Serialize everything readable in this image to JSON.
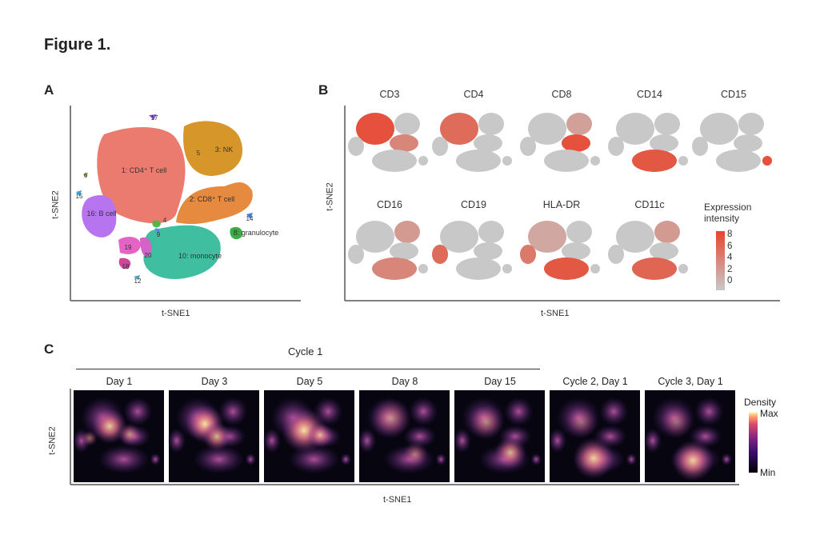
{
  "figure_title": "Figure 1.",
  "panel_a": {
    "label": "A",
    "xlabel": "t-SNE1",
    "ylabel": "t-SNE2",
    "clusters": [
      {
        "id": "1",
        "text": "1: CD4⁺ T cell",
        "color": "#ec7b6f"
      },
      {
        "id": "2",
        "text": "2: CD8⁺ T cell",
        "color": "#e58a3f"
      },
      {
        "id": "3",
        "text": "3: NK",
        "color": "#d7962a"
      },
      {
        "id": "5",
        "text": "5",
        "color": "#d7962a"
      },
      {
        "id": "16",
        "text": "16: B cell",
        "color": "#b774ef"
      },
      {
        "id": "10",
        "text": "10: monocyte",
        "color": "#3fbea0"
      },
      {
        "id": "8",
        "text": "8: granulocyte",
        "color": "#3aad45"
      },
      {
        "id": "19",
        "text": "19",
        "color": "#e663c6"
      },
      {
        "id": "20",
        "text": "20",
        "color": "#d462c8"
      },
      {
        "id": "18",
        "text": "18",
        "color": "#d0449a"
      },
      {
        "id": "4",
        "text": "4",
        "color": "#57b547"
      },
      {
        "id": "9",
        "text": "9",
        "color": "#4f8ee6"
      },
      {
        "id": "12",
        "text": "12",
        "color": "#43a0c8"
      },
      {
        "id": "14",
        "text": "14",
        "color": "#3b7fd8"
      },
      {
        "id": "17",
        "text": "17",
        "color": "#8a52d6"
      },
      {
        "id": "6",
        "text": "6",
        "color": "#8cae2f"
      },
      {
        "id": "15",
        "text": "15",
        "color": "#3aa5d8"
      }
    ]
  },
  "panel_b": {
    "label": "B",
    "xlabel": "t-SNE1",
    "ylabel": "t-SNE2",
    "markers": [
      "CD3",
      "CD4",
      "CD8",
      "CD14",
      "CD15",
      "CD16",
      "CD19",
      "HLA-DR",
      "CD11c"
    ],
    "legend": {
      "title_line1": "Expression",
      "title_line2": "intensity",
      "ticks": [
        "8",
        "6",
        "4",
        "2",
        "0"
      ],
      "color_low": "#c8c8c8",
      "color_high": "#e8442c"
    }
  },
  "panel_c": {
    "label": "C",
    "group_label": "Cycle 1",
    "xlabel": "t-SNE1",
    "ylabel": "t-SNE2",
    "timepoints": [
      "Day 1",
      "Day 3",
      "Day 5",
      "Day 8",
      "Day 15",
      "Cycle 2, Day 1",
      "Cycle 3, Day 1"
    ],
    "legend": {
      "title": "Density",
      "max": "Max",
      "min": "Min"
    }
  }
}
